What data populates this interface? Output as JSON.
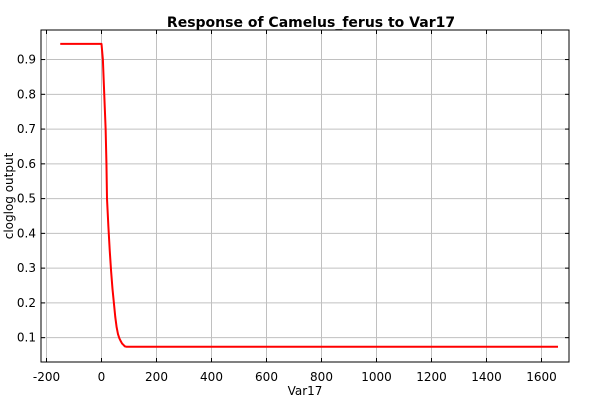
{
  "chart_data": {
    "type": "line",
    "title": "Response of Camelus_ferus to Var17",
    "xlabel": "Var17",
    "ylabel": "cloglog output",
    "xlim": [
      -220,
      1700
    ],
    "ylim": [
      0.03,
      0.985
    ],
    "x_ticks": [
      -200,
      0,
      200,
      400,
      600,
      800,
      1000,
      1200,
      1400,
      1600
    ],
    "y_ticks": [
      0.1,
      0.2,
      0.3,
      0.4,
      0.5,
      0.6,
      0.7,
      0.8,
      0.9
    ],
    "grid": true,
    "series": [
      {
        "color": "#ff0000",
        "x": [
          -150,
          -5,
          0,
          5,
          10,
          15,
          18,
          20,
          25,
          30,
          35,
          40,
          45,
          50,
          55,
          60,
          65,
          70,
          75,
          80,
          85,
          90,
          95,
          100,
          200,
          400,
          800,
          1200,
          1660
        ],
        "y": [
          0.945,
          0.945,
          0.945,
          0.9,
          0.8,
          0.7,
          0.6,
          0.5,
          0.42,
          0.35,
          0.29,
          0.24,
          0.2,
          0.16,
          0.13,
          0.11,
          0.098,
          0.09,
          0.083,
          0.079,
          0.075,
          0.074,
          0.074,
          0.074,
          0.074,
          0.074,
          0.074,
          0.074,
          0.074
        ]
      }
    ]
  }
}
